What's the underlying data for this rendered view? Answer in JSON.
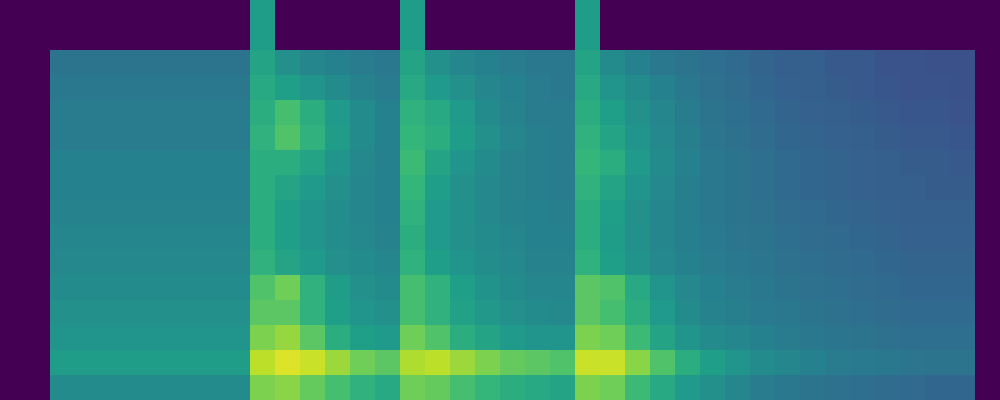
{
  "chart_data": {
    "type": "heatmap",
    "color": "viridis",
    "tick_labels": false,
    "color_range": [
      0,
      100
    ],
    "cells": [
      [
        0,
        0,
        0,
        0,
        0,
        0,
        0,
        0,
        0,
        0,
        55,
        0,
        0,
        0,
        0,
        0,
        55,
        0,
        0,
        0,
        0,
        0,
        0,
        55,
        0,
        0,
        0,
        0,
        0,
        0,
        0,
        0,
        0,
        0,
        0,
        0,
        0,
        0,
        0,
        0
      ],
      [
        0,
        0,
        0,
        0,
        0,
        0,
        0,
        0,
        0,
        0,
        55,
        0,
        0,
        0,
        0,
        0,
        55,
        0,
        0,
        0,
        0,
        0,
        0,
        55,
        0,
        0,
        0,
        0,
        0,
        0,
        0,
        0,
        0,
        0,
        0,
        0,
        0,
        0,
        0,
        0
      ],
      [
        0,
        0,
        38,
        38,
        38,
        38,
        38,
        38,
        38,
        38,
        58,
        50,
        46,
        44,
        42,
        40,
        58,
        50,
        46,
        44,
        42,
        40,
        40,
        58,
        48,
        44,
        40,
        38,
        36,
        34,
        32,
        30,
        30,
        28,
        28,
        26,
        26,
        25,
        25,
        0
      ],
      [
        0,
        0,
        40,
        40,
        40,
        40,
        40,
        40,
        40,
        40,
        60,
        56,
        52,
        48,
        45,
        42,
        60,
        54,
        50,
        46,
        44,
        42,
        40,
        60,
        52,
        48,
        44,
        40,
        37,
        35,
        33,
        31,
        30,
        29,
        28,
        27,
        26,
        26,
        25,
        0
      ],
      [
        0,
        0,
        42,
        42,
        42,
        42,
        42,
        42,
        42,
        42,
        62,
        70,
        62,
        54,
        48,
        44,
        64,
        60,
        54,
        48,
        45,
        42,
        42,
        62,
        56,
        50,
        46,
        42,
        38,
        36,
        34,
        32,
        31,
        30,
        29,
        28,
        27,
        27,
        26,
        0
      ],
      [
        0,
        0,
        42,
        42,
        42,
        42,
        42,
        42,
        42,
        42,
        64,
        72,
        64,
        55,
        48,
        44,
        66,
        62,
        55,
        50,
        46,
        43,
        42,
        64,
        58,
        52,
        47,
        43,
        39,
        37,
        35,
        33,
        32,
        31,
        30,
        29,
        28,
        28,
        27,
        0
      ],
      [
        0,
        0,
        44,
        44,
        44,
        44,
        44,
        44,
        44,
        44,
        62,
        62,
        58,
        52,
        47,
        44,
        68,
        58,
        52,
        48,
        45,
        43,
        42,
        66,
        62,
        54,
        48,
        44,
        40,
        38,
        36,
        34,
        33,
        32,
        31,
        30,
        29,
        29,
        28,
        0
      ],
      [
        0,
        0,
        44,
        44,
        44,
        44,
        44,
        44,
        44,
        44,
        62,
        58,
        54,
        50,
        46,
        44,
        66,
        56,
        50,
        47,
        45,
        43,
        42,
        64,
        58,
        52,
        47,
        43,
        40,
        38,
        36,
        34,
        33,
        32,
        31,
        30,
        30,
        29,
        29,
        0
      ],
      [
        0,
        0,
        45,
        45,
        45,
        45,
        45,
        45,
        45,
        45,
        62,
        56,
        52,
        49,
        46,
        44,
        64,
        54,
        50,
        47,
        45,
        44,
        43,
        62,
        56,
        50,
        46,
        43,
        40,
        38,
        37,
        35,
        34,
        33,
        32,
        31,
        30,
        30,
        30,
        0
      ],
      [
        0,
        0,
        46,
        46,
        46,
        46,
        46,
        46,
        46,
        46,
        62,
        56,
        52,
        49,
        47,
        45,
        62,
        54,
        50,
        48,
        46,
        44,
        44,
        62,
        55,
        50,
        46,
        43,
        41,
        39,
        38,
        36,
        35,
        34,
        33,
        32,
        31,
        31,
        31,
        0
      ],
      [
        0,
        0,
        47,
        47,
        47,
        47,
        47,
        47,
        47,
        47,
        64,
        58,
        54,
        50,
        48,
        46,
        64,
        56,
        52,
        49,
        47,
        45,
        45,
        64,
        56,
        51,
        47,
        44,
        42,
        40,
        39,
        37,
        36,
        35,
        34,
        33,
        32,
        32,
        32,
        0
      ],
      [
        0,
        0,
        48,
        48,
        48,
        48,
        48,
        48,
        48,
        48,
        72,
        78,
        64,
        55,
        50,
        48,
        70,
        64,
        56,
        51,
        48,
        46,
        46,
        74,
        72,
        60,
        52,
        47,
        44,
        42,
        40,
        38,
        37,
        36,
        35,
        34,
        33,
        33,
        33,
        0
      ],
      [
        0,
        0,
        50,
        50,
        50,
        50,
        50,
        50,
        50,
        50,
        74,
        74,
        64,
        56,
        52,
        50,
        70,
        64,
        57,
        53,
        50,
        48,
        47,
        74,
        70,
        62,
        54,
        48,
        45,
        43,
        41,
        40,
        38,
        37,
        36,
        35,
        34,
        34,
        34,
        0
      ],
      [
        0,
        0,
        52,
        52,
        52,
        52,
        52,
        52,
        52,
        52,
        80,
        84,
        74,
        62,
        56,
        54,
        78,
        72,
        62,
        58,
        54,
        52,
        52,
        80,
        78,
        68,
        58,
        52,
        48,
        46,
        44,
        42,
        40,
        39,
        38,
        37,
        36,
        36,
        36,
        0
      ],
      [
        0,
        0,
        55,
        55,
        55,
        55,
        55,
        55,
        55,
        55,
        90,
        95,
        92,
        85,
        78,
        74,
        88,
        90,
        85,
        80,
        76,
        74,
        72,
        92,
        92,
        82,
        72,
        62,
        56,
        52,
        48,
        46,
        44,
        42,
        41,
        40,
        39,
        38,
        38,
        0
      ],
      [
        0,
        0,
        48,
        48,
        48,
        48,
        48,
        48,
        48,
        48,
        80,
        82,
        76,
        70,
        64,
        60,
        78,
        76,
        70,
        66,
        62,
        60,
        58,
        80,
        78,
        68,
        60,
        54,
        50,
        46,
        42,
        40,
        38,
        37,
        36,
        35,
        34,
        33,
        33,
        0
      ]
    ]
  }
}
